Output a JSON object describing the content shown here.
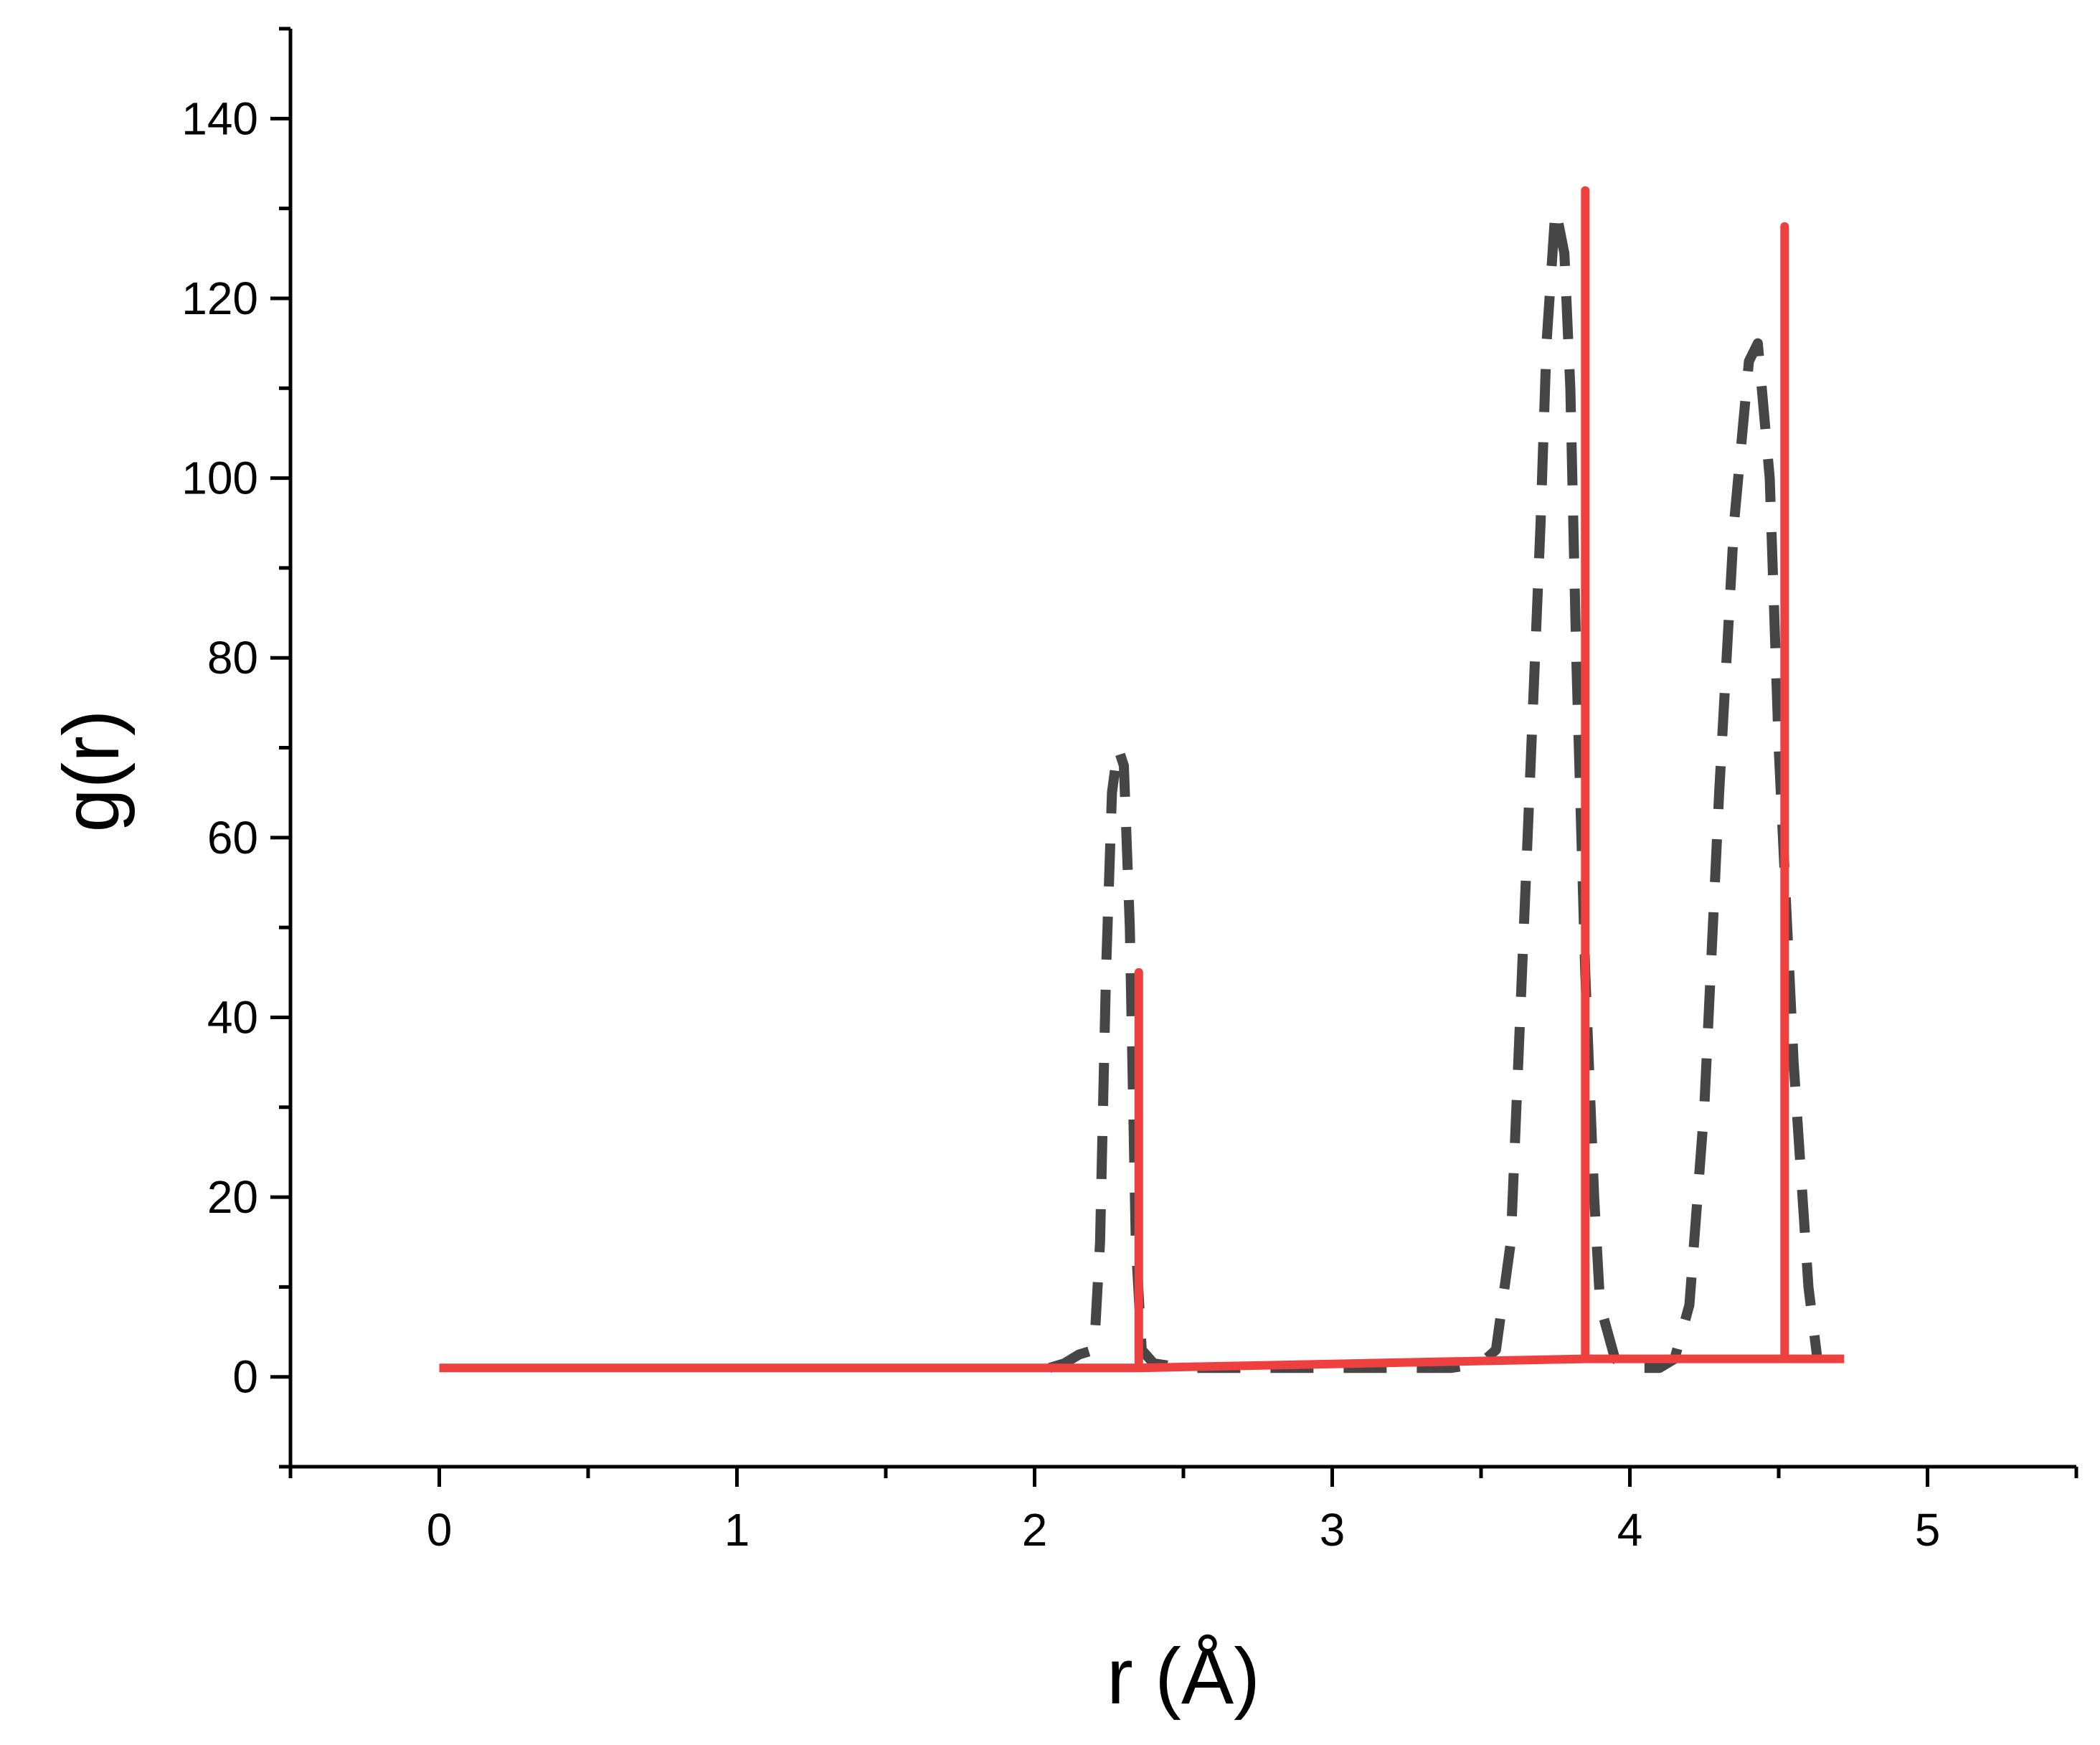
{
  "chart_data": {
    "type": "line",
    "xlabel": "r (Å)",
    "ylabel": "g(r)",
    "xlim": [
      -0.5,
      5.5
    ],
    "ylim": [
      -10,
      150
    ],
    "x_ticks": [
      "0",
      "1",
      "2",
      "3",
      "4",
      "5"
    ],
    "y_ticks": [
      "0",
      "20",
      "40",
      "60",
      "80",
      "100",
      "120",
      "140"
    ],
    "grid": false,
    "legend": "none",
    "series": [
      {
        "style": "dashed",
        "color": "#464646",
        "x": [
          2.05,
          2.1,
          2.15,
          2.2,
          2.22,
          2.24,
          2.26,
          2.28,
          2.3,
          2.32,
          2.34,
          2.36,
          2.4,
          2.5,
          2.7,
          3.0,
          3.3,
          3.4,
          3.5,
          3.55,
          3.6,
          3.65,
          3.7,
          3.72,
          3.75,
          3.78,
          3.8,
          3.82,
          3.85,
          3.88,
          3.9,
          3.95,
          4.0,
          4.1,
          4.15,
          4.2,
          4.25,
          4.3,
          4.35,
          4.4,
          4.43,
          4.47,
          4.5,
          4.55,
          4.6,
          4.63
        ],
        "y": [
          1,
          1.5,
          2.5,
          3,
          15,
          45,
          65,
          70,
          68,
          50,
          15,
          3,
          1.5,
          1,
          1,
          1,
          1,
          1,
          1.5,
          3,
          15,
          55,
          95,
          115,
          130,
          125,
          110,
          80,
          45,
          20,
          8,
          2,
          1,
          1,
          2,
          8,
          30,
          65,
          95,
          113,
          115,
          100,
          70,
          35,
          10,
          2
        ]
      },
      {
        "style": "solid",
        "color": "#ef4040",
        "x": [
          0,
          2.35,
          2.35,
          2.35,
          3.85,
          3.85,
          3.85,
          4.52,
          4.52,
          4.52,
          4.72
        ],
        "y": [
          1,
          1,
          45,
          1,
          2,
          132,
          2,
          2,
          128,
          2,
          2
        ]
      }
    ]
  }
}
